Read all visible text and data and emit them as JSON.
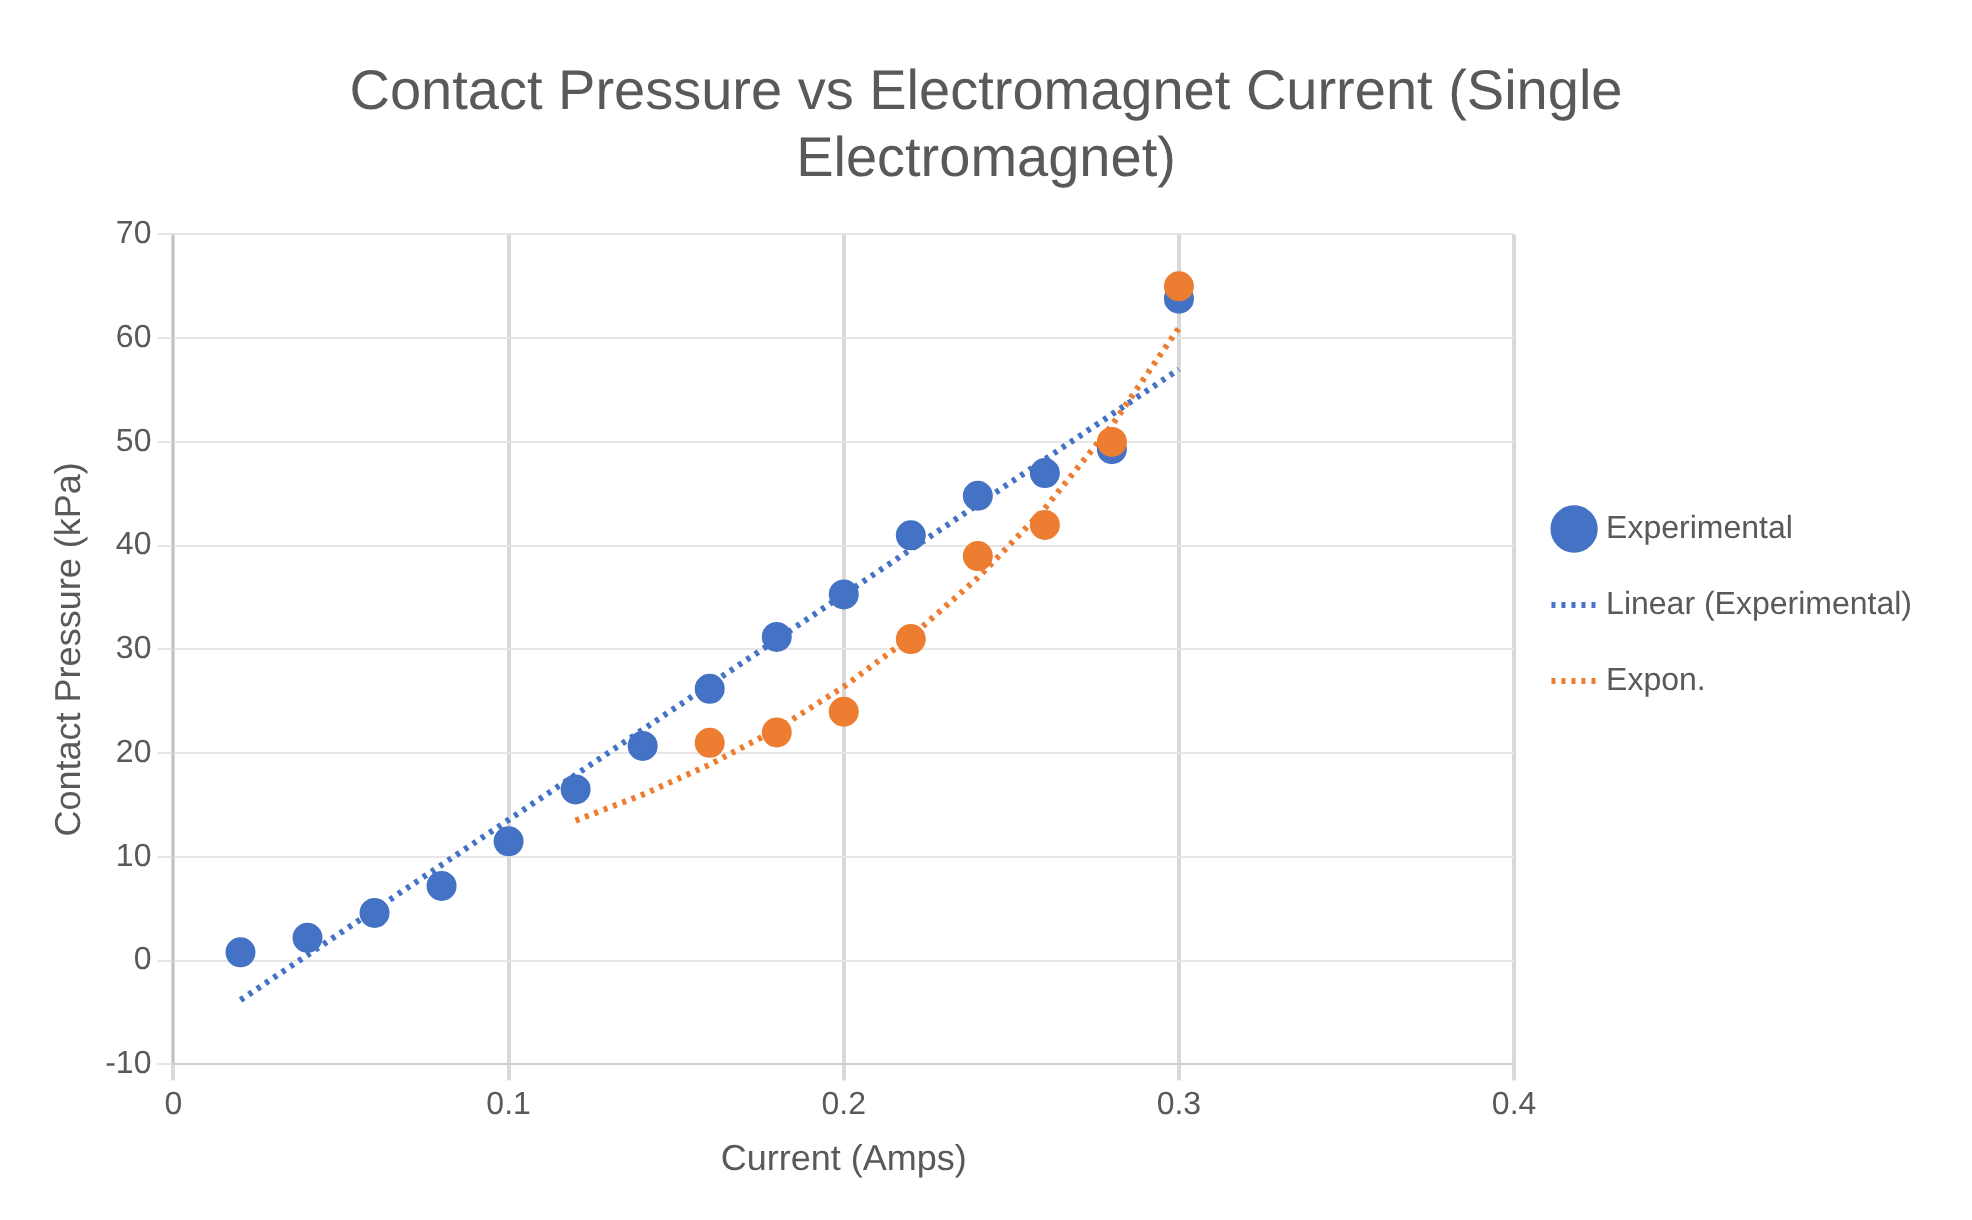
{
  "chart_data": {
    "type": "scatter",
    "title": "Contact Pressure vs Electromagnet Current (Single Electromagnet)",
    "xlabel": "Current (Amps)",
    "ylabel": "Contact Pressure (kPa)",
    "xlim": [
      0,
      0.4
    ],
    "xticks": [
      0,
      0.1,
      0.2,
      0.3,
      0.4
    ],
    "ylim": [
      -10,
      70
    ],
    "yticks": [
      -10,
      0,
      10,
      20,
      30,
      40,
      50,
      60,
      70
    ],
    "grid": true,
    "legend": "right",
    "marker": "circle",
    "series": [
      {
        "name": "Experimental",
        "color": "#4472c4",
        "x": [
          0.02,
          0.04,
          0.06,
          0.08,
          0.1,
          0.12,
          0.14,
          0.16,
          0.18,
          0.2,
          0.22,
          0.24,
          0.26,
          0.28,
          0.3
        ],
        "values": [
          0.8,
          2.2,
          4.6,
          7.2,
          11.5,
          16.5,
          20.7,
          26.2,
          31.2,
          35.3,
          41,
          44.8,
          47,
          49.3,
          63.8
        ]
      },
      {
        "color": "#ed7d31",
        "x": [
          0.16,
          0.18,
          0.2,
          0.22,
          0.24,
          0.26,
          0.28,
          0.3
        ],
        "values": [
          21,
          22,
          24,
          31,
          39,
          42,
          50,
          65
        ]
      },
      {
        "name": "Linear (Experimental)",
        "type": "line",
        "line_style": "dotted",
        "marker": "none",
        "color": "#4472c4",
        "x": [
          0.02,
          0.3
        ],
        "values": [
          -3.8,
          57
        ]
      },
      {
        "name": "Expon.",
        "type": "line",
        "line_style": "dotted",
        "marker": "none",
        "color": "#ed7d31",
        "x": [
          0.12,
          0.14,
          0.16,
          0.18,
          0.2,
          0.22,
          0.24,
          0.26,
          0.28,
          0.3
        ],
        "values": [
          13.5,
          16,
          18.9,
          22.3,
          26.4,
          31.2,
          36.9,
          43.6,
          51.6,
          61
        ]
      }
    ]
  }
}
